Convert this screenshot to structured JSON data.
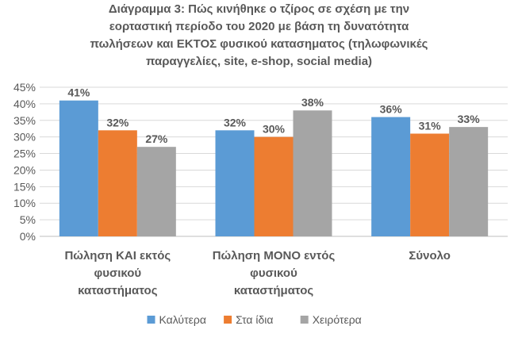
{
  "chart_data": {
    "type": "bar",
    "title_lines": [
      "Διάγραμμα 3: Πώς κινήθηκε ο τζίρος σε σχέση με την",
      "εορταστική περίοδο του 2020 με βάση τη δυνατότητα",
      "πωλήσεων και ΕΚΤΟΣ φυσικού κατασηματος (τηλωφωνικές",
      "παραγγελίες, site, e-shop, social media)"
    ],
    "categories": [
      [
        "Πώληση ΚΑΙ εκτός",
        "φυσικού",
        "καταστήματος"
      ],
      [
        "Πώληση ΜΟΝΟ εντός",
        "φυσικού",
        "καταστήματος"
      ],
      [
        "Σύνολο"
      ]
    ],
    "series": [
      {
        "name": "Καλύτερα",
        "values": [
          41,
          32,
          36
        ],
        "labels": [
          "41%",
          "32%",
          "36%"
        ],
        "color": "#5b9bd5"
      },
      {
        "name": "Στα ίδια",
        "values": [
          32,
          30,
          31
        ],
        "labels": [
          "32%",
          "30%",
          "31%"
        ],
        "color": "#ed7d31"
      },
      {
        "name": "Χειρότερα",
        "values": [
          27,
          38,
          33
        ],
        "labels": [
          "27%",
          "38%",
          "33%"
        ],
        "color": "#a5a5a5"
      }
    ],
    "ylim": [
      0,
      45
    ],
    "yticks": [
      0,
      5,
      10,
      15,
      20,
      25,
      30,
      35,
      40,
      45
    ],
    "ytick_labels": [
      "0%",
      "5%",
      "10%",
      "15%",
      "20%",
      "25%",
      "30%",
      "35%",
      "40%",
      "45%"
    ],
    "grid": true,
    "legend_position": "bottom",
    "xlabel": "",
    "ylabel": ""
  }
}
